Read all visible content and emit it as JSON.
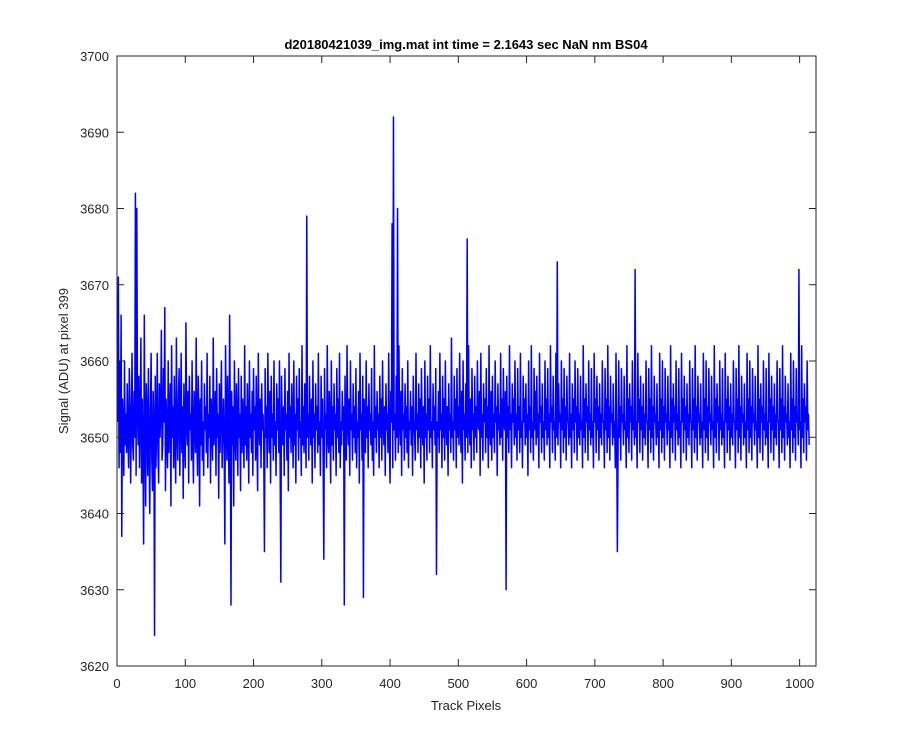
{
  "chart_data": {
    "type": "line",
    "title": "d20180421039_img.mat int time = 2.1643 sec  NaN nm BS04",
    "xlabel": "Track Pixels",
    "ylabel": "Signal (ADU) at pixel 399",
    "xlim": [
      0,
      1024
    ],
    "ylim": [
      3620,
      3700
    ],
    "xticks": [
      0,
      100,
      200,
      300,
      400,
      500,
      600,
      700,
      800,
      900,
      1000
    ],
    "xtick_labels": [
      "0",
      "100",
      "200",
      "300",
      "400",
      "500",
      "600",
      "700",
      "800",
      "900",
      "1000"
    ],
    "yticks": [
      3620,
      3630,
      3640,
      3650,
      3660,
      3670,
      3680,
      3690,
      3700
    ],
    "ytick_labels": [
      "3620",
      "3630",
      "3640",
      "3650",
      "3660",
      "3670",
      "3680",
      "3690",
      "3700"
    ],
    "grid": false,
    "series": [
      {
        "color": "#0000ff",
        "x_start": 1,
        "x_step": 1,
        "values_note_excluded": true,
        "values": [
          3652,
          3671,
          3646,
          3660,
          3648,
          3666,
          3637,
          3655,
          3651,
          3645,
          3660,
          3649,
          3653,
          3648,
          3657,
          3650,
          3646,
          3659,
          3654,
          3644,
          3652,
          3661,
          3649,
          3647,
          3656,
          3650,
          3682,
          3645,
          3680,
          3653,
          3649,
          3658,
          3646,
          3652,
          3663,
          3644,
          3655,
          3648,
          3636,
          3666,
          3650,
          3641,
          3657,
          3652,
          3645,
          3659,
          3649,
          3640,
          3654,
          3661,
          3647,
          3643,
          3656,
          3652,
          3624,
          3658,
          3646,
          3651,
          3661,
          3648,
          3644,
          3657,
          3650,
          3653,
          3664,
          3647,
          3649,
          3659,
          3652,
          3667,
          3643,
          3655,
          3650,
          3646,
          3660,
          3648,
          3653,
          3657,
          3641,
          3662,
          3650,
          3654,
          3646,
          3658,
          3649,
          3644,
          3663,
          3651,
          3647,
          3655,
          3659,
          3645,
          3652,
          3661,
          3648,
          3654,
          3642,
          3657,
          3650,
          3646,
          3665,
          3652,
          3649,
          3656,
          3644,
          3658,
          3651,
          3653,
          3647,
          3660,
          3649,
          3644,
          3656,
          3652,
          3648,
          3663,
          3650,
          3645,
          3658,
          3653,
          3641,
          3655,
          3649,
          3660,
          3647,
          3652,
          3645,
          3657,
          3651,
          3654,
          3648,
          3661,
          3646,
          3653,
          3650,
          3658,
          3644,
          3655,
          3652,
          3647,
          3663,
          3649,
          3651,
          3656,
          3645,
          3659,
          3650,
          3653,
          3642,
          3657,
          3648,
          3654,
          3660,
          3646,
          3651,
          3655,
          3649,
          3636,
          3662,
          3653,
          3647,
          3658,
          3650,
          3644,
          3666,
          3652,
          3628,
          3656,
          3649,
          3654,
          3641,
          3660,
          3651,
          3647,
          3657,
          3652,
          3645,
          3659,
          3650,
          3653,
          3643,
          3658,
          3648,
          3655,
          3651,
          3646,
          3662,
          3649,
          3654,
          3647,
          3657,
          3652,
          3644,
          3660,
          3650,
          3653,
          3648,
          3656,
          3645,
          3659,
          3651,
          3654,
          3647,
          3658,
          3650,
          3643,
          3661,
          3652,
          3649,
          3655,
          3646,
          3657,
          3651,
          3653,
          3648,
          3635,
          3659,
          3650,
          3654,
          3646,
          3661,
          3652,
          3648,
          3656,
          3644,
          3658,
          3650,
          3653,
          3647,
          3660,
          3649,
          3652,
          3645,
          3657,
          3651,
          3655,
          3648,
          3660,
          3646,
          3631,
          3658,
          3652,
          3649,
          3654,
          3645,
          3659,
          3651,
          3653,
          3647,
          3656,
          3643,
          3661,
          3650,
          3654,
          3648,
          3657,
          3652,
          3646,
          3660,
          3649,
          3653,
          3644,
          3658,
          3651,
          3655,
          3647,
          3659,
          3650,
          3652,
          3645,
          3662,
          3649,
          3654,
          3648,
          3657,
          3651,
          3646,
          3679,
          3650,
          3653,
          3647,
          3658,
          3652,
          3649,
          3655,
          3644,
          3660,
          3650,
          3653,
          3646,
          3657,
          3651,
          3654,
          3648,
          3661,
          3649,
          3652,
          3645,
          3658,
          3650,
          3655,
          3647,
          3634,
          3659,
          3651,
          3653,
          3646,
          3662,
          3650,
          3648,
          3656,
          3652,
          3644,
          3660,
          3649,
          3654,
          3647,
          3657,
          3651,
          3653,
          3645,
          3659,
          3650,
          3655,
          3648,
          3661,
          3646,
          3652,
          3649,
          3656,
          3651,
          3654,
          3628,
          3658,
          3650,
          3647,
          3662,
          3652,
          3649,
          3655,
          3645,
          3660,
          3651,
          3653,
          3647,
          3657,
          3650,
          3654,
          3648,
          3659,
          3646,
          3652,
          3650,
          3656,
          3644,
          3661,
          3651,
          3653,
          3647,
          3658,
          3629,
          3655,
          3652,
          3648,
          3660,
          3650,
          3654,
          3646,
          3657,
          3651,
          3653,
          3649,
          3659,
          3647,
          3652,
          3645,
          3662,
          3650,
          3654,
          3648,
          3656,
          3651,
          3653,
          3646,
          3658,
          3650,
          3655,
          3647,
          3660,
          3652,
          3649,
          3654,
          3645,
          3657,
          3651,
          3653,
          3648,
          3661,
          3650,
          3644,
          3656,
          3652,
          3678,
          3646,
          3692,
          3651,
          3653,
          3647,
          3658,
          3650,
          3680,
          3648,
          3662,
          3652,
          3649,
          3656,
          3645,
          3659,
          3651,
          3653,
          3647,
          3657,
          3650,
          3654,
          3648,
          3660,
          3646,
          3652,
          3651,
          3656,
          3649,
          3654,
          3645,
          3658,
          3652,
          3650,
          3647,
          3661,
          3651,
          3653,
          3648,
          3657,
          3650,
          3655,
          3646,
          3659,
          3652,
          3649,
          3654,
          3644,
          3660,
          3650,
          3653,
          3647,
          3658,
          3651,
          3655,
          3648,
          3662,
          3650,
          3652,
          3646,
          3657,
          3651,
          3654,
          3649,
          3659,
          3632,
          3652,
          3650,
          3656,
          3648,
          3661,
          3651,
          3653,
          3646,
          3658,
          3650,
          3655,
          3647,
          3660,
          3652,
          3649,
          3654,
          3645,
          3657,
          3651,
          3653,
          3648,
          3663,
          3650,
          3652,
          3647,
          3658,
          3651,
          3655,
          3646,
          3659,
          3650,
          3654,
          3649,
          3661,
          3652,
          3648,
          3656,
          3644,
          3660,
          3651,
          3653,
          3647,
          3657,
          3650,
          3676,
          3648,
          3662,
          3652,
          3649,
          3655,
          3646,
          3659,
          3651,
          3653,
          3647,
          3658,
          3650,
          3654,
          3648,
          3660,
          3652,
          3651,
          3656,
          3645,
          3661,
          3650,
          3653,
          3647,
          3657,
          3652,
          3655,
          3648,
          3659,
          3650,
          3654,
          3646,
          3662,
          3651,
          3649,
          3656,
          3647,
          3658,
          3650,
          3653,
          3648,
          3660,
          3652,
          3654,
          3645,
          3657,
          3651,
          3653,
          3649,
          3661,
          3650,
          3655,
          3647,
          3659,
          3652,
          3651,
          3656,
          3630,
          3658,
          3650,
          3654,
          3648,
          3662,
          3651,
          3653,
          3646,
          3657,
          3652,
          3655,
          3649,
          3660,
          3650,
          3653,
          3647,
          3659,
          3651,
          3654,
          3648,
          3661,
          3650,
          3652,
          3646,
          3658,
          3652,
          3655,
          3649,
          3657,
          3650,
          3653,
          3645,
          3660,
          3651,
          3654,
          3648,
          3662,
          3650,
          3652,
          3647,
          3659,
          3651,
          3656,
          3649,
          3658,
          3650,
          3653,
          3646,
          3661,
          3652,
          3654,
          3648,
          3657,
          3650,
          3652,
          3647,
          3660,
          3651,
          3655,
          3649,
          3659,
          3650,
          3653,
          3646,
          3662,
          3652,
          3654,
          3648,
          3658,
          3651,
          3652,
          3647,
          3661,
          3650,
          3673,
          3649,
          3657,
          3652,
          3653,
          3646,
          3660,
          3651,
          3655,
          3648,
          3659,
          3650,
          3654,
          3647,
          3658,
          3652,
          3652,
          3649,
          3661,
          3650,
          3653,
          3646,
          3657,
          3651,
          3655,
          3648,
          3660,
          3652,
          3654,
          3647,
          3659,
          3650,
          3653,
          3649,
          3658,
          3651,
          3652,
          3646,
          3662,
          3650,
          3655,
          3648,
          3657,
          3652,
          3654,
          3647,
          3660,
          3651,
          3653,
          3649,
          3659,
          3650,
          3652,
          3646,
          3661,
          3652,
          3655,
          3648,
          3658,
          3651,
          3654,
          3647,
          3657,
          3650,
          3653,
          3649,
          3660,
          3652,
          3652,
          3646,
          3659,
          3651,
          3655,
          3648,
          3662,
          3650,
          3654,
          3647,
          3658,
          3652,
          3653,
          3649,
          3657,
          3650,
          3652,
          3646,
          3661,
          3651,
          3635,
          3648,
          3660,
          3650,
          3654,
          3647,
          3659,
          3652,
          3653,
          3649,
          3658,
          3651,
          3652,
          3646,
          3662,
          3650,
          3655,
          3648,
          3657,
          3652,
          3654,
          3647,
          3660,
          3651,
          3653,
          3649,
          3672,
          3650,
          3652,
          3646,
          3661,
          3652,
          3655,
          3648,
          3658,
          3651,
          3654,
          3647,
          3657,
          3650,
          3653,
          3649,
          3660,
          3652,
          3652,
          3646,
          3659,
          3651,
          3655,
          3648,
          3662,
          3650,
          3654,
          3647,
          3658,
          3652,
          3653,
          3649,
          3657,
          3650,
          3652,
          3646,
          3661,
          3651,
          3655,
          3648,
          3660,
          3650,
          3654,
          3647,
          3659,
          3652,
          3653,
          3649,
          3658,
          3651,
          3652,
          3646,
          3662,
          3650,
          3655,
          3648,
          3657,
          3652,
          3654,
          3647,
          3660,
          3651,
          3653,
          3649,
          3659,
          3650,
          3652,
          3646,
          3661,
          3652,
          3655,
          3648,
          3658,
          3651,
          3654,
          3647,
          3657,
          3650,
          3653,
          3649,
          3660,
          3652,
          3652,
          3646,
          3659,
          3651,
          3655,
          3648,
          3662,
          3650,
          3654,
          3647,
          3658,
          3652,
          3653,
          3649,
          3657,
          3650,
          3652,
          3646,
          3661,
          3651,
          3655,
          3648,
          3660,
          3650,
          3654,
          3647,
          3659,
          3652,
          3653,
          3649,
          3658,
          3651,
          3652,
          3646,
          3662,
          3650,
          3655,
          3648,
          3657,
          3652,
          3654,
          3647,
          3660,
          3651,
          3653,
          3649,
          3659,
          3650,
          3652,
          3646,
          3661,
          3652,
          3655,
          3648,
          3658,
          3651,
          3654,
          3647,
          3657,
          3650,
          3653,
          3649,
          3660,
          3652,
          3652,
          3646,
          3659,
          3651,
          3655,
          3648,
          3662,
          3650,
          3654,
          3647,
          3658,
          3652,
          3653,
          3649,
          3657,
          3650,
          3652,
          3646,
          3661,
          3651,
          3655,
          3648,
          3660,
          3650,
          3654,
          3647,
          3659,
          3652,
          3653,
          3649,
          3658,
          3651,
          3652,
          3646,
          3662,
          3650,
          3655,
          3648,
          3657,
          3652,
          3654,
          3647,
          3660,
          3651,
          3653,
          3649,
          3659,
          3650,
          3652,
          3646,
          3661,
          3652,
          3655,
          3648,
          3658,
          3651,
          3654,
          3647,
          3657,
          3650,
          3653,
          3649,
          3660,
          3652,
          3652,
          3646,
          3659,
          3651,
          3655,
          3648,
          3662,
          3650,
          3654,
          3647,
          3658,
          3652,
          3653,
          3649,
          3657,
          3650,
          3652,
          3646,
          3661,
          3651,
          3655,
          3648,
          3660,
          3650,
          3654,
          3647,
          3659,
          3652,
          3653,
          3649,
          3672,
          3651,
          3652,
          3646,
          3662,
          3650,
          3655,
          3648,
          3657,
          3652,
          3654,
          3647,
          3660,
          3651,
          3653,
          3649
        ]
      }
    ]
  }
}
